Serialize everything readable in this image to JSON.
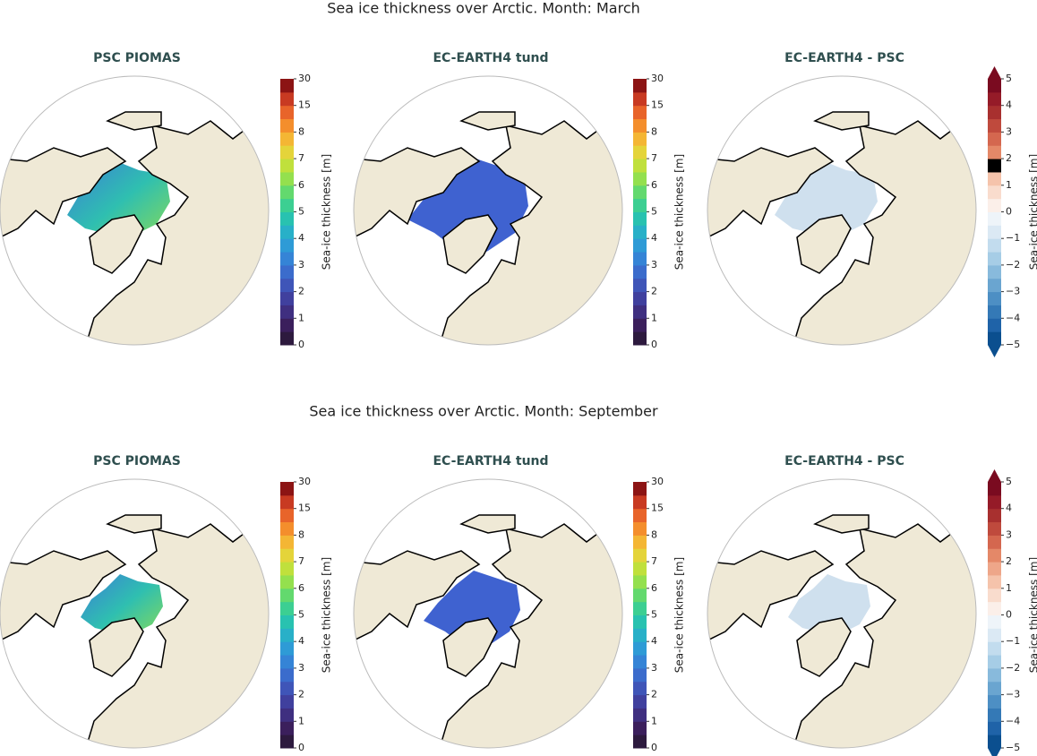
{
  "figures": [
    {
      "title": "Sea ice thickness over Arctic. Month: March",
      "panels": [
        {
          "title": "PSC PIOMAS",
          "colorbar": {
            "label": "Sea-ice thickness [m]",
            "ticks": [
              0,
              1,
              2,
              3,
              4,
              5,
              6,
              7,
              8,
              15,
              30
            ],
            "colors": [
              "#2d1a3e",
              "#3b1f5c",
              "#3f2f80",
              "#40409e",
              "#3f55b8",
              "#3b6ccc",
              "#3584d6",
              "#2e9bd6",
              "#28b0c8",
              "#28c2b0",
              "#3ccf92",
              "#63d96e",
              "#94e04e",
              "#c0e03c",
              "#e4d43a",
              "#f4b634",
              "#f48e2c",
              "#e8642a",
              "#c83a22",
              "#8c1414"
            ]
          }
        },
        {
          "title": "EC-EARTH4 tund",
          "colorbar": {
            "label": "Sea-ice thickness [m]",
            "ticks": [
              0,
              1,
              2,
              3,
              4,
              5,
              6,
              7,
              8,
              15,
              30
            ],
            "colors": [
              "#2d1a3e",
              "#3b1f5c",
              "#3f2f80",
              "#40409e",
              "#3f55b8",
              "#3b6ccc",
              "#3584d6",
              "#2e9bd6",
              "#28b0c8",
              "#28c2b0",
              "#3ccf92",
              "#63d96e",
              "#94e04e",
              "#c0e03c",
              "#e4d43a",
              "#f4b634",
              "#f48e2c",
              "#e8642a",
              "#c83a22",
              "#8c1414"
            ]
          }
        },
        {
          "title": "EC-EARTH4 -  PSC",
          "colorbar": {
            "label": "Sea-ice thickness [m]",
            "extend": "both",
            "ticks": [
              {
                "value": -5,
                "label": "−5"
              },
              {
                "value": -4,
                "label": "−4"
              },
              {
                "value": -3,
                "label": "−3"
              },
              {
                "value": -2,
                "label": "−2"
              },
              {
                "value": -1,
                "label": "−1"
              },
              0,
              1,
              2,
              3,
              4,
              5
            ],
            "colors": [
              "#0b4f8f",
              "#1f63a8",
              "#3479b6",
              "#4d8fc4",
              "#6aa5d0",
              "#88badc",
              "#a6cde6",
              "#c2dcee",
              "#dbe9f4",
              "#eef4f9",
              "#fbefe9",
              "#f9dccd",
              "#f5c3ab",
              "#ee a689",
              "#e48868",
              "#d4674f",
              "#bf4a3d",
              "#a8302f",
              "#951b28",
              "#7a0b20"
            ]
          }
        }
      ]
    },
    {
      "title": "Sea ice thickness over Arctic. Month: September",
      "panels": [
        {
          "title": "PSC PIOMAS",
          "colorbar": {
            "label": "Sea-ice thickness [m]",
            "ticks": [
              0,
              1,
              2,
              3,
              4,
              5,
              6,
              7,
              8,
              15,
              30
            ],
            "colors": [
              "#2d1a3e",
              "#3b1f5c",
              "#3f2f80",
              "#40409e",
              "#3f55b8",
              "#3b6ccc",
              "#3584d6",
              "#2e9bd6",
              "#28b0c8",
              "#28c2b0",
              "#3ccf92",
              "#63d96e",
              "#94e04e",
              "#c0e03c",
              "#e4d43a",
              "#f4b634",
              "#f48e2c",
              "#e8642a",
              "#c83a22",
              "#8c1414"
            ]
          }
        },
        {
          "title": "EC-EARTH4 tund",
          "colorbar": {
            "label": "Sea-ice thickness [m]",
            "ticks": [
              0,
              1,
              2,
              3,
              4,
              5,
              6,
              7,
              8,
              15,
              30
            ],
            "colors": [
              "#2d1a3e",
              "#3b1f5c",
              "#3f2f80",
              "#40409e",
              "#3f55b8",
              "#3b6ccc",
              "#3584d6",
              "#2e9bd6",
              "#28b0c8",
              "#28c2b0",
              "#3ccf92",
              "#63d96e",
              "#94e04e",
              "#c0e03c",
              "#e4d43a",
              "#f4b634",
              "#f48e2c",
              "#e8642a",
              "#c83a22",
              "#8c1414"
            ]
          }
        },
        {
          "title": "EC-EARTH4 -  PSC",
          "colorbar": {
            "label": "Sea-ice thickness [m]",
            "extend": "both",
            "ticks": [
              {
                "value": -5,
                "label": "−5"
              },
              {
                "value": -4,
                "label": "−4"
              },
              {
                "value": -3,
                "label": "−3"
              },
              {
                "value": -2,
                "label": "−2"
              },
              {
                "value": -1,
                "label": "−1"
              },
              0,
              1,
              2,
              3,
              4,
              5
            ],
            "colors": [
              "#0b4f8f",
              "#1f63a8",
              "#3479b6",
              "#4d8fc4",
              "#6aa5d0",
              "#88badc",
              "#a6cde6",
              "#c2dcee",
              "#dbe9f4",
              "#eef4f9",
              "#fbefe9",
              "#f9dccd",
              "#f5c3ab",
              "#eea689",
              "#e48868",
              "#d4674f",
              "#bf4a3d",
              "#a8302f",
              "#951b28",
              "#7a0b20"
            ]
          }
        }
      ]
    }
  ]
}
